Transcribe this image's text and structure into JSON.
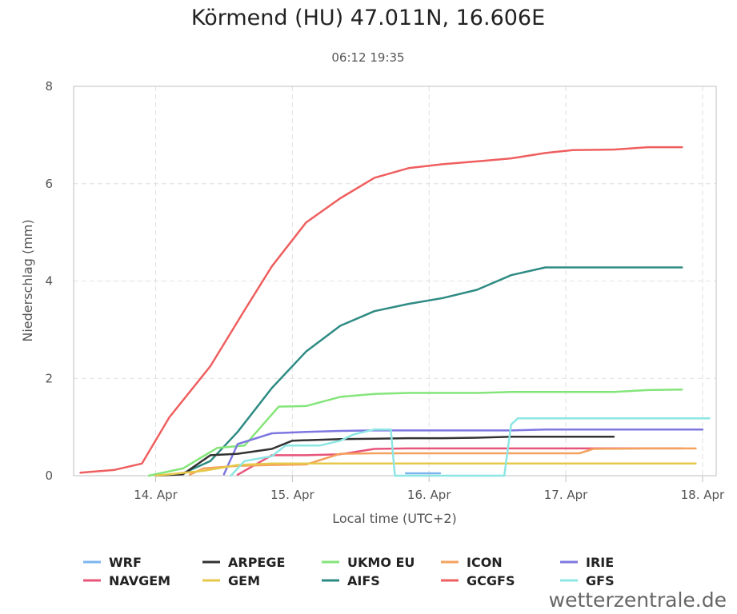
{
  "chart_data": {
    "type": "line",
    "title": "Körmend (HU) 47.011N, 16.606E",
    "subtitle": "06:12 19:35",
    "xlabel": "Local time (UTC+2)",
    "ylabel": "Niederschlag (mm)",
    "ylim": [
      0,
      8
    ],
    "yticks": [
      0,
      2,
      4,
      6,
      8
    ],
    "xlim": [
      13.4,
      18.1
    ],
    "xticks": [
      {
        "value": 14,
        "label": "14. Apr"
      },
      {
        "value": 15,
        "label": "15. Apr"
      },
      {
        "value": 16,
        "label": "16. Apr"
      },
      {
        "value": 17,
        "label": "17. Apr"
      },
      {
        "value": 18,
        "label": "18. Apr"
      }
    ],
    "grid": true,
    "legend_position": "bottom",
    "series": [
      {
        "name": "GCGFS",
        "color": "#ef5f5f",
        "points": [
          [
            13.45,
            0.06
          ],
          [
            13.7,
            0.12
          ],
          [
            13.9,
            0.25
          ],
          [
            14.1,
            1.2
          ],
          [
            14.4,
            2.25
          ],
          [
            14.65,
            3.4
          ],
          [
            14.85,
            4.3
          ],
          [
            15.1,
            5.2
          ],
          [
            15.35,
            5.7
          ],
          [
            15.6,
            6.12
          ],
          [
            15.85,
            6.32
          ],
          [
            16.1,
            6.4
          ],
          [
            16.4,
            6.47
          ],
          [
            16.6,
            6.52
          ],
          [
            16.85,
            6.63
          ],
          [
            17.05,
            6.69
          ],
          [
            17.35,
            6.7
          ],
          [
            17.6,
            6.75
          ],
          [
            17.85,
            6.75
          ]
        ]
      },
      {
        "name": "AIFS",
        "color": "#2e8b83",
        "points": [
          [
            14.2,
            0.05
          ],
          [
            14.4,
            0.3
          ],
          [
            14.6,
            0.9
          ],
          [
            14.85,
            1.8
          ],
          [
            15.1,
            2.55
          ],
          [
            15.35,
            3.08
          ],
          [
            15.6,
            3.38
          ],
          [
            15.85,
            3.53
          ],
          [
            16.1,
            3.65
          ],
          [
            16.35,
            3.82
          ],
          [
            16.6,
            4.12
          ],
          [
            16.85,
            4.28
          ],
          [
            17.35,
            4.28
          ],
          [
            17.85,
            4.28
          ]
        ]
      },
      {
        "name": "UKMO EU",
        "color": "#84e57a",
        "points": [
          [
            13.95,
            0.0
          ],
          [
            14.2,
            0.15
          ],
          [
            14.45,
            0.57
          ],
          [
            14.65,
            0.62
          ],
          [
            14.9,
            1.42
          ],
          [
            15.1,
            1.43
          ],
          [
            15.35,
            1.62
          ],
          [
            15.6,
            1.68
          ],
          [
            15.85,
            1.7
          ],
          [
            16.1,
            1.7
          ],
          [
            16.35,
            1.7
          ],
          [
            16.6,
            1.72
          ],
          [
            16.85,
            1.72
          ],
          [
            17.35,
            1.72
          ],
          [
            17.6,
            1.76
          ],
          [
            17.85,
            1.77
          ]
        ]
      },
      {
        "name": "IRIE",
        "color": "#7e77e0",
        "points": [
          [
            14.5,
            0.03
          ],
          [
            14.6,
            0.65
          ],
          [
            14.85,
            0.87
          ],
          [
            15.1,
            0.9
          ],
          [
            15.35,
            0.92
          ],
          [
            15.6,
            0.93
          ],
          [
            15.85,
            0.93
          ],
          [
            16.1,
            0.93
          ],
          [
            16.6,
            0.93
          ],
          [
            16.85,
            0.95
          ],
          [
            17.35,
            0.95
          ],
          [
            17.85,
            0.95
          ],
          [
            18.0,
            0.95
          ]
        ]
      },
      {
        "name": "ARPEGE",
        "color": "#333333",
        "points": [
          [
            14.0,
            0.0
          ],
          [
            14.2,
            0.03
          ],
          [
            14.4,
            0.42
          ],
          [
            14.6,
            0.45
          ],
          [
            14.85,
            0.55
          ],
          [
            15.0,
            0.72
          ],
          [
            15.35,
            0.75
          ],
          [
            15.6,
            0.76
          ],
          [
            15.85,
            0.77
          ],
          [
            16.1,
            0.77
          ],
          [
            16.35,
            0.78
          ],
          [
            16.6,
            0.8
          ],
          [
            16.85,
            0.8
          ],
          [
            17.35,
            0.8
          ]
        ]
      },
      {
        "name": "NAVGEM",
        "color": "#e8557a",
        "points": [
          [
            14.6,
            0.02
          ],
          [
            14.85,
            0.42
          ],
          [
            15.1,
            0.42
          ],
          [
            15.35,
            0.44
          ],
          [
            15.6,
            0.55
          ],
          [
            15.85,
            0.56
          ],
          [
            16.1,
            0.56
          ],
          [
            16.6,
            0.56
          ],
          [
            17.1,
            0.56
          ],
          [
            17.35,
            0.56
          ],
          [
            17.85,
            0.56
          ]
        ]
      },
      {
        "name": "ICON",
        "color": "#f4a15d",
        "points": [
          [
            14.25,
            0.02
          ],
          [
            14.35,
            0.15
          ],
          [
            14.6,
            0.2
          ],
          [
            14.85,
            0.22
          ],
          [
            15.1,
            0.23
          ],
          [
            15.35,
            0.45
          ],
          [
            15.6,
            0.46
          ],
          [
            15.85,
            0.46
          ],
          [
            16.1,
            0.46
          ],
          [
            16.6,
            0.46
          ],
          [
            17.1,
            0.46
          ],
          [
            17.2,
            0.55
          ],
          [
            17.6,
            0.56
          ],
          [
            17.95,
            0.56
          ]
        ]
      },
      {
        "name": "GEM",
        "color": "#e6c84a",
        "points": [
          [
            14.0,
            0.0
          ],
          [
            14.35,
            0.1
          ],
          [
            14.6,
            0.22
          ],
          [
            14.85,
            0.25
          ],
          [
            15.1,
            0.25
          ],
          [
            15.35,
            0.25
          ],
          [
            16.1,
            0.25
          ],
          [
            16.6,
            0.25
          ],
          [
            17.1,
            0.25
          ],
          [
            17.6,
            0.25
          ],
          [
            17.95,
            0.25
          ]
        ]
      },
      {
        "name": "GFS",
        "color": "#8ce6e3",
        "points": [
          [
            14.55,
            0.0
          ],
          [
            14.65,
            0.3
          ],
          [
            14.85,
            0.4
          ],
          [
            14.95,
            0.62
          ],
          [
            15.2,
            0.62
          ],
          [
            15.35,
            0.72
          ],
          [
            15.45,
            0.85
          ],
          [
            15.6,
            0.95
          ],
          [
            15.72,
            0.95
          ],
          [
            15.75,
            0.0
          ],
          [
            16.55,
            0.0
          ],
          [
            16.6,
            1.05
          ],
          [
            16.65,
            1.18
          ],
          [
            17.1,
            1.18
          ],
          [
            17.6,
            1.18
          ],
          [
            18.05,
            1.18
          ]
        ]
      },
      {
        "name": "WRF",
        "color": "#7cb5ec",
        "points": [
          [
            15.83,
            0.05
          ],
          [
            16.08,
            0.05
          ]
        ]
      }
    ],
    "legend": [
      "WRF",
      "ARPEGE",
      "UKMO EU",
      "ICON",
      "IRIE",
      "NAVGEM",
      "GEM",
      "AIFS",
      "GCGFS",
      "GFS"
    ]
  },
  "credit": "wetterzentrale.de"
}
